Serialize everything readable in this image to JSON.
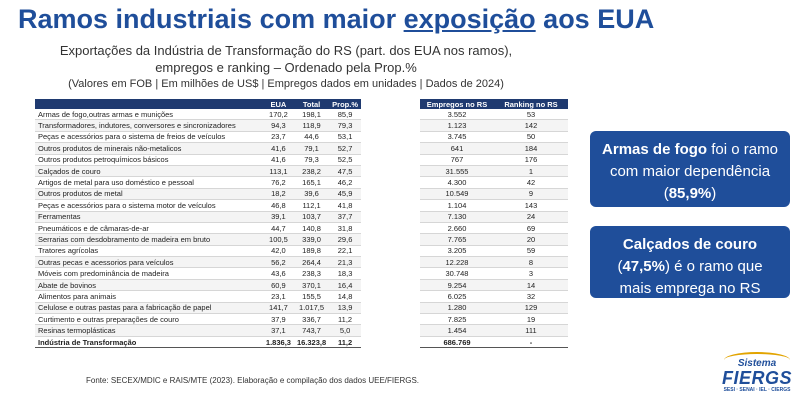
{
  "title": {
    "part1": "Ramos industriais com maior ",
    "underlined": "exposição",
    "part2": " aos EUA"
  },
  "subtitle": "Exportações da Indústria de Transformação do RS (part. dos EUA nos ramos), empregos e ranking – Ordenado pela Prop.%",
  "note": "(Valores em FOB | Em milhões de US$ | Empregos dados em unidades | Dados de 2024)",
  "main_table": {
    "headers": [
      "",
      "EUA",
      "Total",
      "Prop.%"
    ],
    "rows": [
      [
        "Armas de fogo,outras armas e munições",
        "170,2",
        "198,1",
        "85,9"
      ],
      [
        "Transformadores, indutores, conversores e sincronizadores",
        "94,3",
        "118,9",
        "79,3"
      ],
      [
        "Peças e acessórios para o sistema de freios de veículos",
        "23,7",
        "44,6",
        "53,1"
      ],
      [
        "Outros produtos de minerais não-metalicos",
        "41,6",
        "79,1",
        "52,7"
      ],
      [
        "Outros produtos petroquímicos básicos",
        "41,6",
        "79,3",
        "52,5"
      ],
      [
        "Calçados de couro",
        "113,1",
        "238,2",
        "47,5"
      ],
      [
        "Artigos de metal para uso doméstico e pessoal",
        "76,2",
        "165,1",
        "46,2"
      ],
      [
        "Outros produtos de metal",
        "18,2",
        "39,6",
        "45,9"
      ],
      [
        "Peças e acessórios para o sistema motor de veículos",
        "46,8",
        "112,1",
        "41,8"
      ],
      [
        "Ferramentas",
        "39,1",
        "103,7",
        "37,7"
      ],
      [
        "Pneumáticos e de câmaras-de-ar",
        "44,7",
        "140,8",
        "31,8"
      ],
      [
        "Serrarias com desdobramento de madeira em bruto",
        "100,5",
        "339,0",
        "29,6"
      ],
      [
        "Tratores agrícolas",
        "42,0",
        "189,8",
        "22,1"
      ],
      [
        "Outras pecas e acessorios para veículos",
        "56,2",
        "264,4",
        "21,3"
      ],
      [
        "Móveis com predominância de madeira",
        "43,6",
        "238,3",
        "18,3"
      ],
      [
        "Abate de bovinos",
        "60,9",
        "370,1",
        "16,4"
      ],
      [
        "Alimentos para animais",
        "23,1",
        "155,5",
        "14,8"
      ],
      [
        "Celulose e outras pastas para a fabricação de papel",
        "141,7",
        "1.017,5",
        "13,9"
      ],
      [
        "Curtimento e outras preparações de couro",
        "37,9",
        "336,7",
        "11,2"
      ],
      [
        "Resinas termoplásticas",
        "37,1",
        "743,7",
        "5,0"
      ]
    ],
    "total": [
      "Indústria de Transformação",
      "1.836,3",
      "16.323,8",
      "11,2"
    ]
  },
  "side_table": {
    "headers": [
      "Empregos no RS",
      "Ranking no RS"
    ],
    "rows": [
      [
        "3.552",
        "53"
      ],
      [
        "1.123",
        "142"
      ],
      [
        "3.745",
        "50"
      ],
      [
        "641",
        "184"
      ],
      [
        "767",
        "176"
      ],
      [
        "31.555",
        "1"
      ],
      [
        "4.300",
        "42"
      ],
      [
        "10.549",
        "9"
      ],
      [
        "1.104",
        "143"
      ],
      [
        "7.130",
        "24"
      ],
      [
        "2.660",
        "69"
      ],
      [
        "7.765",
        "20"
      ],
      [
        "3.205",
        "59"
      ],
      [
        "12.228",
        "8"
      ],
      [
        "30.748",
        "3"
      ],
      [
        "9.254",
        "14"
      ],
      [
        "6.025",
        "32"
      ],
      [
        "1.280",
        "129"
      ],
      [
        "7.825",
        "19"
      ],
      [
        "1.454",
        "111"
      ]
    ],
    "total": [
      "686.769",
      "-"
    ]
  },
  "callouts": {
    "arms": {
      "bold": "Armas de fogo",
      "text1": " foi o ramo com maior dependência (",
      "value": "85,9%",
      "text2": ")"
    },
    "shoes": {
      "bold": "Calçados de couro",
      "text1": " (",
      "value": "47,5%",
      "text2": ") é o ramo que mais emprega no RS"
    }
  },
  "logo": {
    "line1": "Sistema",
    "line2": "FIERGS",
    "line3": "SESI · SENAI · IEL · CIERGS"
  },
  "source": "Fonte: SECEX/MDIC e RAIS/MTE (2023). Elaboração e compilação dos dados UEE/FIERGS.",
  "colors": {
    "brand_blue": "#1f4e9a",
    "header_navy": "#1f3a70",
    "logo_accent": "#e2a400"
  }
}
